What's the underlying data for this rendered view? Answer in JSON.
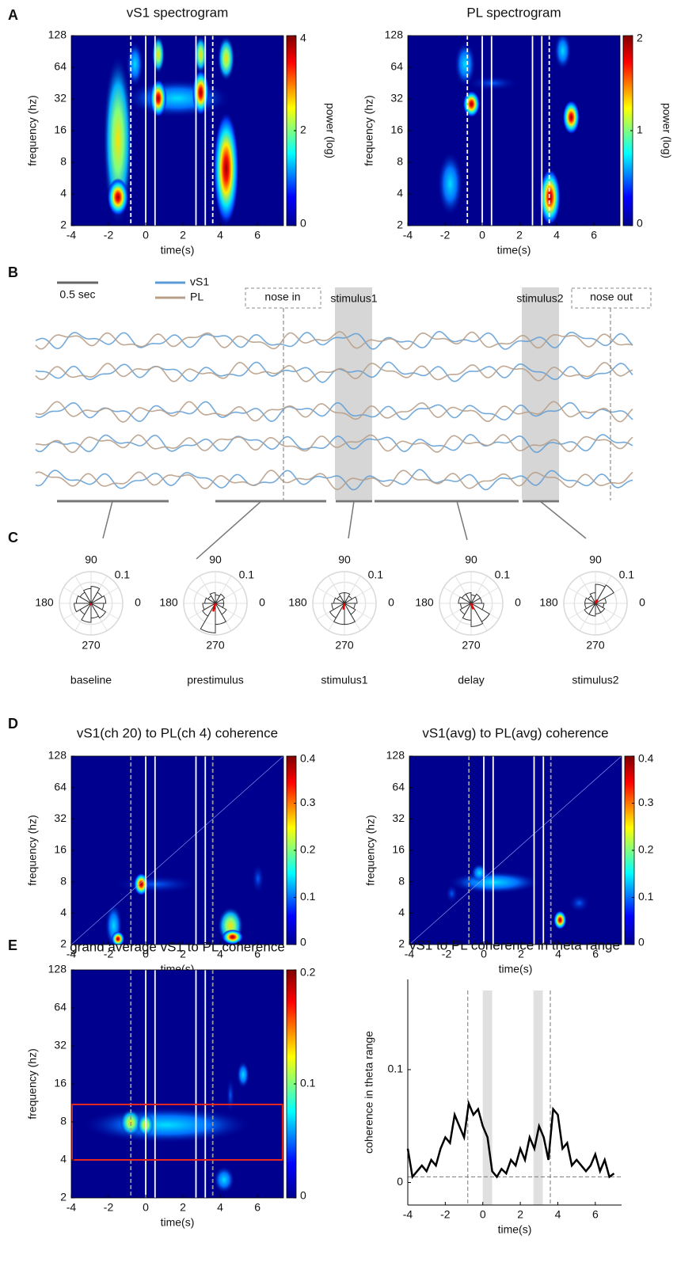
{
  "panel_labels": [
    "A",
    "B",
    "C",
    "D",
    "E"
  ],
  "chart_data": [
    {
      "type": "heatmap",
      "title": "vS1 spectrogram",
      "xlabel": "time(s)",
      "ylabel": "frequency (hz)",
      "xlim": [
        -4,
        7.4
      ],
      "xticks": [
        -4,
        -2,
        0,
        2,
        4,
        6
      ],
      "ylim": [
        2,
        128
      ],
      "yticks": [
        2,
        4,
        8,
        16,
        32,
        64,
        128
      ],
      "log_y": true,
      "colorbar": {
        "label": "power (log)",
        "lim": [
          0,
          4
        ],
        "ticks": [
          0,
          2,
          4
        ]
      },
      "dashed_lines": [
        -0.8,
        3.6
      ],
      "dashed_color": "#ffffff",
      "solid_lines": [
        0,
        0.5,
        2.7,
        3.2
      ]
    },
    {
      "type": "heatmap",
      "title": "PL spectrogram",
      "xlabel": "time(s)",
      "ylabel": "frequency (hz)",
      "xlim": [
        -4,
        7.4
      ],
      "xticks": [
        -4,
        -2,
        0,
        2,
        4,
        6
      ],
      "ylim": [
        2,
        128
      ],
      "yticks": [
        2,
        4,
        8,
        16,
        32,
        64,
        128
      ],
      "log_y": true,
      "colorbar": {
        "label": "power (log)",
        "lim": [
          0,
          2
        ],
        "ticks": [
          0,
          1,
          2
        ]
      },
      "dashed_lines": [
        -0.8,
        3.6
      ],
      "dashed_color": "#ffffff",
      "solid_lines": [
        0,
        0.5,
        2.7,
        3.2
      ]
    },
    {
      "type": "traces",
      "scale_bar": "0.5 sec",
      "series": [
        {
          "name": "vS1",
          "color": "#5b9bd5"
        },
        {
          "name": "PL",
          "color": "#b89f88"
        }
      ],
      "annotations": [
        "nose in",
        "stimulus1",
        "stimulus2",
        "nose out"
      ]
    },
    {
      "type": "rose",
      "title": "baseline",
      "thetaticks": [
        90,
        180,
        0,
        270
      ],
      "rlim": [
        0,
        0.15
      ],
      "rticks": [
        0.1
      ],
      "values": [
        0.07,
        0.06,
        0.08,
        0.07,
        0.06,
        0.07,
        0.08,
        0.06,
        0.09,
        0.07,
        0.08,
        0.06
      ],
      "mean_vector": [
        250,
        0.01
      ]
    },
    {
      "type": "rose",
      "title": "prestimulus",
      "thetaticks": [
        90,
        180,
        0,
        270
      ],
      "rlim": [
        0,
        0.15
      ],
      "rticks": [
        0.1
      ],
      "values": [
        0.04,
        0.05,
        0.04,
        0.05,
        0.04,
        0.05,
        0.06,
        0.07,
        0.14,
        0.1,
        0.06,
        0.04
      ],
      "mean_vector": [
        255,
        0.04
      ]
    },
    {
      "type": "rose",
      "title": "stimulus1",
      "thetaticks": [
        90,
        180,
        0,
        270
      ],
      "rlim": [
        0,
        0.15
      ],
      "rticks": [
        0.1
      ],
      "values": [
        0.06,
        0.04,
        0.05,
        0.05,
        0.04,
        0.05,
        0.06,
        0.08,
        0.1,
        0.1,
        0.06,
        0.05
      ],
      "mean_vector": [
        260,
        0.03
      ]
    },
    {
      "type": "rose",
      "title": "delay",
      "thetaticks": [
        90,
        180,
        0,
        270
      ],
      "rlim": [
        0,
        0.15
      ],
      "rticks": [
        0.1
      ],
      "values": [
        0.05,
        0.05,
        0.04,
        0.05,
        0.05,
        0.06,
        0.05,
        0.06,
        0.08,
        0.11,
        0.1,
        0.06
      ],
      "mean_vector": [
        290,
        0.03
      ]
    },
    {
      "type": "rose",
      "title": "stimulus2",
      "thetaticks": [
        90,
        180,
        0,
        270
      ],
      "rlim": [
        0,
        0.15
      ],
      "rticks": [
        0.1
      ],
      "values": [
        0.05,
        0.1,
        0.09,
        0.05,
        0.04,
        0.05,
        0.05,
        0.06,
        0.06,
        0.05,
        0.05,
        0.04
      ],
      "mean_vector": [
        60,
        0.02
      ]
    },
    {
      "type": "heatmap",
      "title": "vS1(ch 20) to PL(ch 4) coherence",
      "xlabel": "time(s)",
      "ylabel": "frequency (hz)",
      "xlim": [
        -4,
        7.4
      ],
      "xticks": [
        -4,
        -2,
        0,
        2,
        4,
        6
      ],
      "ylim": [
        2,
        128
      ],
      "yticks": [
        2,
        4,
        8,
        16,
        32,
        64,
        128
      ],
      "log_y": true,
      "colorbar": {
        "lim": [
          0,
          0.4
        ],
        "ticks": [
          0,
          0.1,
          0.2,
          0.3,
          0.4
        ]
      },
      "dashed_lines": [
        -0.8,
        3.6
      ],
      "dashed_color": "#9a9a9a",
      "solid_lines": [
        0,
        0.5,
        2.7,
        3.2
      ]
    },
    {
      "type": "heatmap",
      "title": "vS1(avg) to PL(avg) coherence",
      "xlabel": "time(s)",
      "ylabel": "frequency (hz)",
      "xlim": [
        -4,
        7.4
      ],
      "xticks": [
        -4,
        -2,
        0,
        2,
        4,
        6
      ],
      "ylim": [
        2,
        128
      ],
      "yticks": [
        2,
        4,
        8,
        16,
        32,
        64,
        128
      ],
      "log_y": true,
      "colorbar": {
        "lim": [
          0,
          0.4
        ],
        "ticks": [
          0,
          0.1,
          0.2,
          0.3,
          0.4
        ]
      },
      "dashed_lines": [
        -0.8,
        3.6
      ],
      "dashed_color": "#9a9a9a",
      "solid_lines": [
        0,
        0.5,
        2.7,
        3.2
      ]
    },
    {
      "type": "heatmap",
      "title": "grand average vS1 to PL coherence",
      "xlabel": "time(s)",
      "ylabel": "frequency (hz)",
      "xlim": [
        -4,
        7.4
      ],
      "xticks": [
        -4,
        -2,
        0,
        2,
        4,
        6
      ],
      "ylim": [
        2,
        128
      ],
      "yticks": [
        2,
        4,
        8,
        16,
        32,
        64,
        128
      ],
      "log_y": true,
      "colorbar": {
        "lim": [
          0,
          0.2
        ],
        "ticks": [
          0,
          0.1,
          0.2
        ]
      },
      "dashed_lines": [
        -0.8,
        3.6
      ],
      "dashed_color": "#9a9a9a",
      "solid_lines": [
        0,
        0.5,
        2.7,
        3.2
      ],
      "highlight_band": [
        4,
        11
      ],
      "highlight_color": "#e8281e"
    },
    {
      "type": "line",
      "title": "vS1 to PL coherence in theta range",
      "xlabel": "time(s)",
      "ylabel": "coherence in theta range",
      "xlim": [
        -4,
        7.4
      ],
      "xticks": [
        -4,
        -2,
        0,
        2,
        4,
        6
      ],
      "ylim": [
        -0.02,
        0.18
      ],
      "yticks": [
        0,
        0.1
      ],
      "shaded": [
        [
          0,
          0.5
        ],
        [
          2.7,
          3.2
        ]
      ],
      "dashed_lines": [
        -0.8,
        3.6
      ],
      "hline": 0.005,
      "x": [
        -4,
        -3.75,
        -3.5,
        -3.25,
        -3,
        -2.75,
        -2.5,
        -2.25,
        -2,
        -1.75,
        -1.5,
        -1.25,
        -1,
        -0.75,
        -0.5,
        -0.25,
        0,
        0.25,
        0.5,
        0.75,
        1,
        1.25,
        1.5,
        1.75,
        2,
        2.25,
        2.5,
        2.75,
        3,
        3.25,
        3.5,
        3.75,
        4,
        4.25,
        4.5,
        4.75,
        5,
        5.25,
        5.5,
        5.75,
        6,
        6.25,
        6.5,
        6.75,
        7
      ],
      "series": [
        {
          "color": "#000000",
          "values": [
            0.03,
            0.005,
            0.01,
            0.015,
            0.01,
            0.02,
            0.015,
            0.03,
            0.04,
            0.035,
            0.06,
            0.05,
            0.04,
            0.07,
            0.06,
            0.065,
            0.05,
            0.04,
            0.01,
            0.005,
            0.012,
            0.008,
            0.02,
            0.015,
            0.03,
            0.02,
            0.04,
            0.03,
            0.05,
            0.04,
            0.02,
            0.065,
            0.06,
            0.03,
            0.035,
            0.015,
            0.02,
            0.015,
            0.01,
            0.015,
            0.025,
            0.01,
            0.02,
            0.005,
            0.008
          ]
        }
      ]
    }
  ]
}
